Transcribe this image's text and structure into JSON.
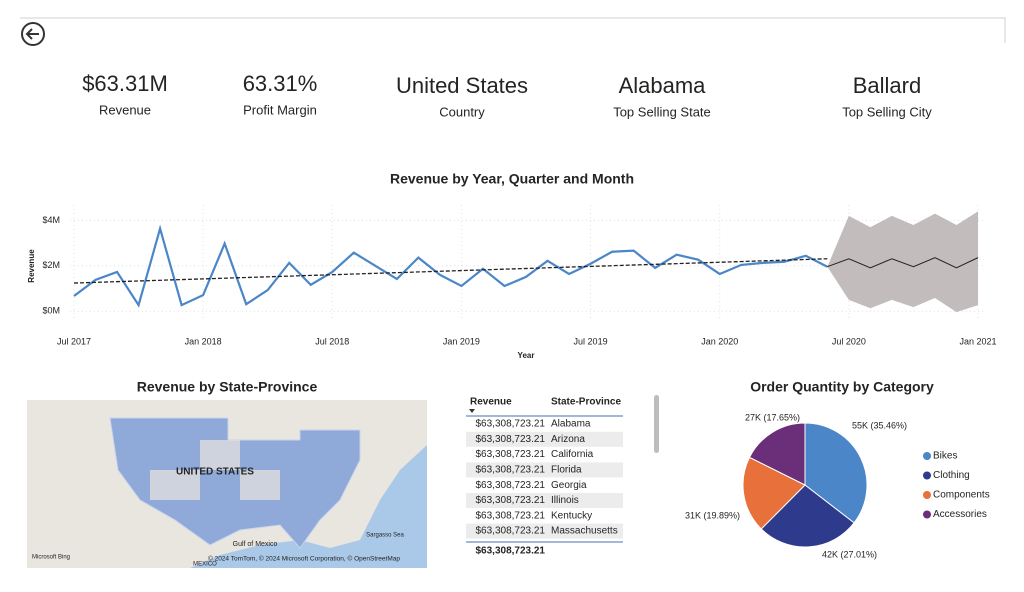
{
  "kpis": [
    {
      "value": "$63.31M",
      "label": "Revenue"
    },
    {
      "value": "63.31%",
      "label": "Profit Margin"
    },
    {
      "value": "United States",
      "label": "Country"
    },
    {
      "value": "Alabama",
      "label": "Top Selling State"
    },
    {
      "value": "Ballard",
      "label": "Top Selling City"
    }
  ],
  "chart_data": [
    {
      "type": "line",
      "title": "Revenue by Year, Quarter and Month",
      "x_label": "Year",
      "y_label": "Revenue",
      "x": [
        "2017-07",
        "2017-08",
        "2017-09",
        "2017-10",
        "2017-11",
        "2017-12",
        "2018-01",
        "2018-02",
        "2018-03",
        "2018-04",
        "2018-05",
        "2018-06",
        "2018-07",
        "2018-08",
        "2018-09",
        "2018-10",
        "2018-11",
        "2018-12",
        "2019-01",
        "2019-02",
        "2019-03",
        "2019-04",
        "2019-05",
        "2019-06",
        "2019-07",
        "2019-08",
        "2019-09",
        "2019-10",
        "2019-11",
        "2019-12",
        "2020-01",
        "2020-02",
        "2020-03",
        "2020-04",
        "2020-05",
        "2020-06",
        "2020-07",
        "2020-08",
        "2020-09",
        "2020-10",
        "2020-11",
        "2020-12",
        "2021-01"
      ],
      "xlim": [
        "2017-07",
        "2021-01"
      ],
      "xticks": [
        {
          "value": "2017-07",
          "label": "Jul 2017"
        },
        {
          "value": "2018-01",
          "label": "Jan 2018"
        },
        {
          "value": "2018-07",
          "label": "Jul 2018"
        },
        {
          "value": "2019-01",
          "label": "Jan 2019"
        },
        {
          "value": "2019-07",
          "label": "Jul 2019"
        },
        {
          "value": "2020-01",
          "label": "Jan 2020"
        },
        {
          "value": "2020-07",
          "label": "Jul 2020"
        },
        {
          "value": "2021-01",
          "label": "Jan 2021"
        }
      ],
      "ylim": [
        -0.3,
        4.9
      ],
      "yticks": [
        {
          "value": 0,
          "label": "$0M"
        },
        {
          "value": 2,
          "label": "$2M"
        },
        {
          "value": 4,
          "label": "$4M"
        }
      ],
      "grid": true,
      "series": [
        {
          "color": "#4a86c8",
          "values": [
            0.67,
            1.38,
            1.73,
            0.27,
            3.64,
            0.27,
            0.71,
            2.98,
            0.31,
            0.93,
            2.13,
            1.16,
            1.73,
            2.58,
            2.0,
            1.42,
            2.36,
            1.6,
            1.11,
            1.87,
            1.11,
            1.51,
            2.22,
            1.64,
            2.09,
            2.62,
            2.67,
            1.91,
            2.49,
            2.27,
            1.64,
            2.04,
            2.13,
            2.18,
            2.44,
            1.96,
            null,
            null,
            null,
            null,
            null,
            null,
            null
          ]
        },
        {
          "color": "#222222",
          "values": [
            null,
            null,
            null,
            null,
            null,
            null,
            null,
            null,
            null,
            null,
            null,
            null,
            null,
            null,
            null,
            null,
            null,
            null,
            null,
            null,
            null,
            null,
            null,
            null,
            null,
            null,
            null,
            null,
            null,
            null,
            null,
            null,
            null,
            null,
            null,
            1.96,
            2.31,
            1.91,
            2.31,
            1.96,
            2.36,
            1.91,
            2.36
          ]
        }
      ],
      "band": {
        "color": "#c2bcbc",
        "upper": [
          null,
          null,
          null,
          null,
          null,
          null,
          null,
          null,
          null,
          null,
          null,
          null,
          null,
          null,
          null,
          null,
          null,
          null,
          null,
          null,
          null,
          null,
          null,
          null,
          null,
          null,
          null,
          null,
          null,
          null,
          null,
          null,
          null,
          null,
          null,
          1.96,
          4.2,
          3.7,
          4.2,
          3.8,
          4.3,
          3.8,
          4.4
        ],
        "lower": [
          null,
          null,
          null,
          null,
          null,
          null,
          null,
          null,
          null,
          null,
          null,
          null,
          null,
          null,
          null,
          null,
          null,
          null,
          null,
          null,
          null,
          null,
          null,
          null,
          null,
          null,
          null,
          null,
          null,
          null,
          null,
          null,
          null,
          null,
          null,
          1.96,
          0.5,
          0.13,
          0.5,
          0.18,
          0.58,
          -0.04,
          0.27
        ]
      },
      "trend": {
        "x": [
          "2017-07",
          "2020-06"
        ],
        "values": [
          1.24,
          2.31
        ]
      }
    },
    {
      "type": "pie",
      "title": "Order Quantity by Category",
      "categories": [
        "Bikes",
        "Clothing",
        "Components",
        "Accessories"
      ],
      "values": [
        35.46,
        27.01,
        19.89,
        17.65
      ],
      "value_labels": [
        "55K (35.46%)",
        "42K (27.01%)",
        "31K (19.89%)",
        "27K (17.65%)"
      ],
      "colors": [
        "#4a86c8",
        "#2e3a8c",
        "#e8703a",
        "#6b2f7a"
      ]
    }
  ],
  "map": {
    "title": "Revenue by State-Province",
    "labels": [
      "UNITED STATES",
      "Gulf of Mexico",
      "Sargasso Sea",
      "MEXICO"
    ],
    "logo": "Microsoft Bing",
    "credits": "© 2024 TomTom, © 2024 Microsoft Corporation, © OpenStreetMap"
  },
  "table": {
    "headers": [
      "Revenue",
      "State-Province"
    ],
    "rows": [
      [
        "$63,308,723.21",
        "Alabama"
      ],
      [
        "$63,308,723.21",
        "Arizona"
      ],
      [
        "$63,308,723.21",
        "California"
      ],
      [
        "$63,308,723.21",
        "Florida"
      ],
      [
        "$63,308,723.21",
        "Georgia"
      ],
      [
        "$63,308,723.21",
        "Illinois"
      ],
      [
        "$63,308,723.21",
        "Kentucky"
      ],
      [
        "$63,308,723.21",
        "Massachusetts"
      ]
    ],
    "total": "$63,308,723.21"
  }
}
